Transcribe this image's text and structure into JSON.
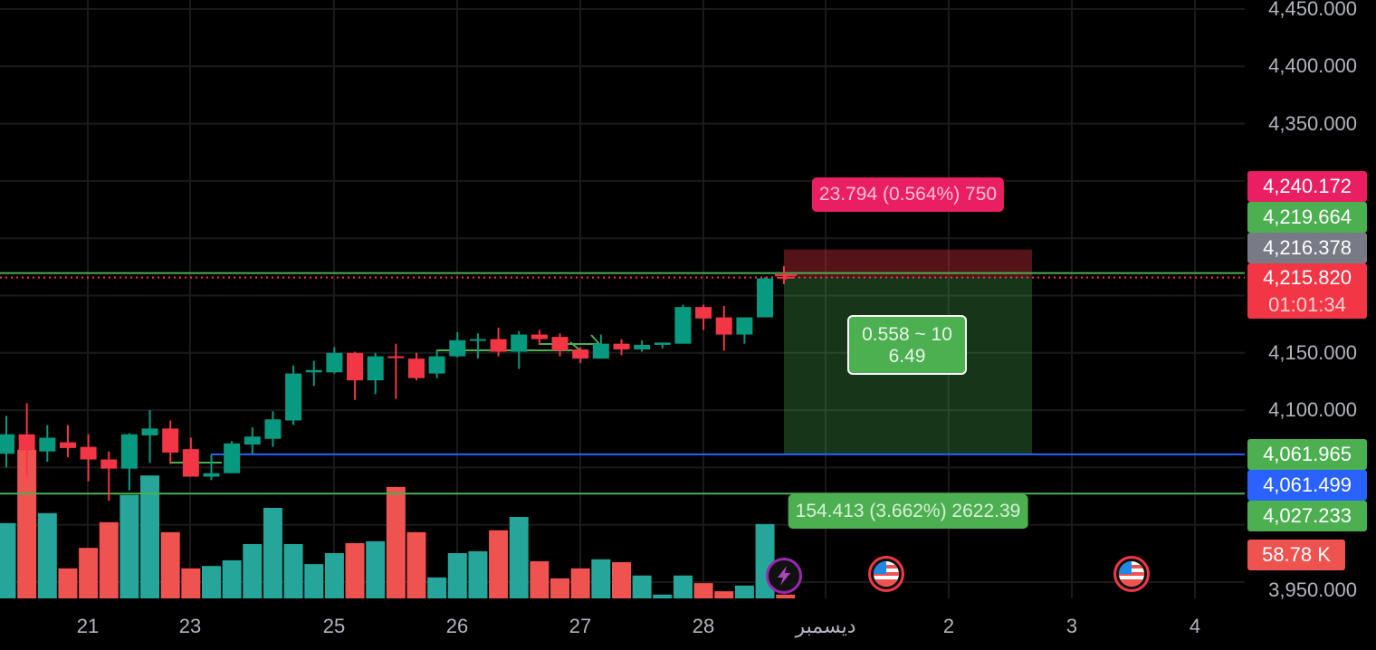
{
  "colors": {
    "up": "#089981",
    "down": "#f23645",
    "vol_up": "#26a69a",
    "vol_down": "#ef5350",
    "grid": "#1a1a1a",
    "blue_line": "#2962ff",
    "green_line": "#4caf50"
  },
  "chart_data": {
    "type": "candlestick",
    "title": "",
    "ylim": [
      3940,
      4460
    ],
    "grid": true,
    "price_ticks": [
      "4,450.000",
      "4,400.000",
      "4,350.000",
      "4,150.000",
      "4,100.000",
      "3,950.000"
    ],
    "price_tick_values": [
      4450,
      4400,
      4350,
      4150,
      4100,
      3950
    ],
    "time_ticks": [
      "21",
      "23",
      "25",
      "26",
      "27",
      "28",
      "ديسمبر",
      "2",
      "3",
      "4"
    ],
    "candles": [
      [
        4062,
        4095,
        4050,
        4079
      ],
      [
        4079,
        4106,
        4042,
        4065
      ],
      [
        4064,
        4087,
        4055,
        4076
      ],
      [
        4072,
        4087,
        4059,
        4067
      ],
      [
        4068,
        4079,
        4038,
        4057
      ],
      [
        4057,
        4064,
        4021,
        4049
      ],
      [
        4049,
        4080,
        4030,
        4079
      ],
      [
        4078,
        4100,
        4054,
        4084
      ],
      [
        4084,
        4091,
        4053,
        4063
      ],
      [
        4066,
        4076,
        4042,
        4042
      ],
      [
        4042,
        4061,
        4039,
        4045
      ],
      [
        4045,
        4073,
        4045,
        4071
      ],
      [
        4070,
        4085,
        4062,
        4077
      ],
      [
        4075,
        4099,
        4068,
        4092
      ],
      [
        4091,
        4139,
        4087,
        4132
      ],
      [
        4133,
        4143,
        4121,
        4135
      ],
      [
        4133,
        4155,
        4132,
        4150
      ],
      [
        4150,
        4151,
        4109,
        4126
      ],
      [
        4126,
        4150,
        4114,
        4147
      ],
      [
        4147,
        4158,
        4110,
        4146
      ],
      [
        4145,
        4150,
        4126,
        4128
      ],
      [
        4132,
        4152,
        4128,
        4147
      ],
      [
        4147,
        4168,
        4146,
        4161
      ],
      [
        4161,
        4167,
        4145,
        4162
      ],
      [
        4162,
        4172,
        4147,
        4151
      ],
      [
        4151,
        4169,
        4136,
        4166
      ],
      [
        4166,
        4170,
        4157,
        4162
      ],
      [
        4164,
        4167,
        4147,
        4152
      ],
      [
        4153,
        4155,
        4141,
        4145
      ],
      [
        4145,
        4166,
        4145,
        4158
      ],
      [
        4158,
        4162,
        4148,
        4153
      ],
      [
        4153,
        4161,
        4151,
        4157
      ],
      [
        4157,
        4159,
        4154,
        4159
      ],
      [
        4158,
        4192,
        4158,
        4190
      ],
      [
        4190,
        4192,
        4170,
        4180
      ],
      [
        4181,
        4191,
        4152,
        4166
      ],
      [
        4166,
        4181,
        4158,
        4181
      ],
      [
        4181,
        4216,
        4181,
        4215
      ],
      [
        4216.4,
        4218,
        4214,
        4215.8
      ]
    ],
    "candle_format": [
      "open",
      "high",
      "low",
      "close"
    ],
    "volume_k": [
      158,
      312,
      179,
      63,
      106,
      160,
      217,
      258,
      139,
      63,
      68,
      80,
      114,
      190,
      114,
      72,
      95,
      116,
      120,
      234,
      139,
      44,
      95,
      99,
      143,
      171,
      78,
      42,
      63,
      82,
      76,
      48,
      8,
      48,
      32,
      15,
      27,
      156,
      8
    ],
    "horizontal_lines": [
      {
        "price": 4219.664,
        "color": "#4caf50",
        "style": "solid"
      },
      {
        "price": 4215.82,
        "color": "#f23645",
        "style": "dotted"
      },
      {
        "price": 4061.499,
        "color": "#2962ff",
        "style": "solid"
      },
      {
        "price": 4027.233,
        "color": "#4caf50",
        "style": "solid"
      }
    ],
    "position": {
      "type": "short",
      "stop": 4240.172,
      "entry": 4216.378,
      "target": 4061.965
    }
  },
  "price_labels": {
    "stop": "4,240.172",
    "green_line": "4,219.664",
    "entry": "4,216.378",
    "last": "4,215.820",
    "countdown": "01:01:34",
    "target": "4,061.965",
    "blue_line": "4,061.499",
    "low_line": "4,027.233",
    "volume": "58.78 K"
  },
  "position_tool": {
    "stop_label": "23.794 (0.564%) 750",
    "target_label": "154.413 (3.662%) 2622.39",
    "ratio_line1": "0.558 ~ 10",
    "ratio_line2": "6.49"
  },
  "events": [
    {
      "icon": "lightning-icon"
    },
    {
      "icon": "us-flag-icon"
    },
    {
      "icon": "us-flag-icon"
    }
  ]
}
